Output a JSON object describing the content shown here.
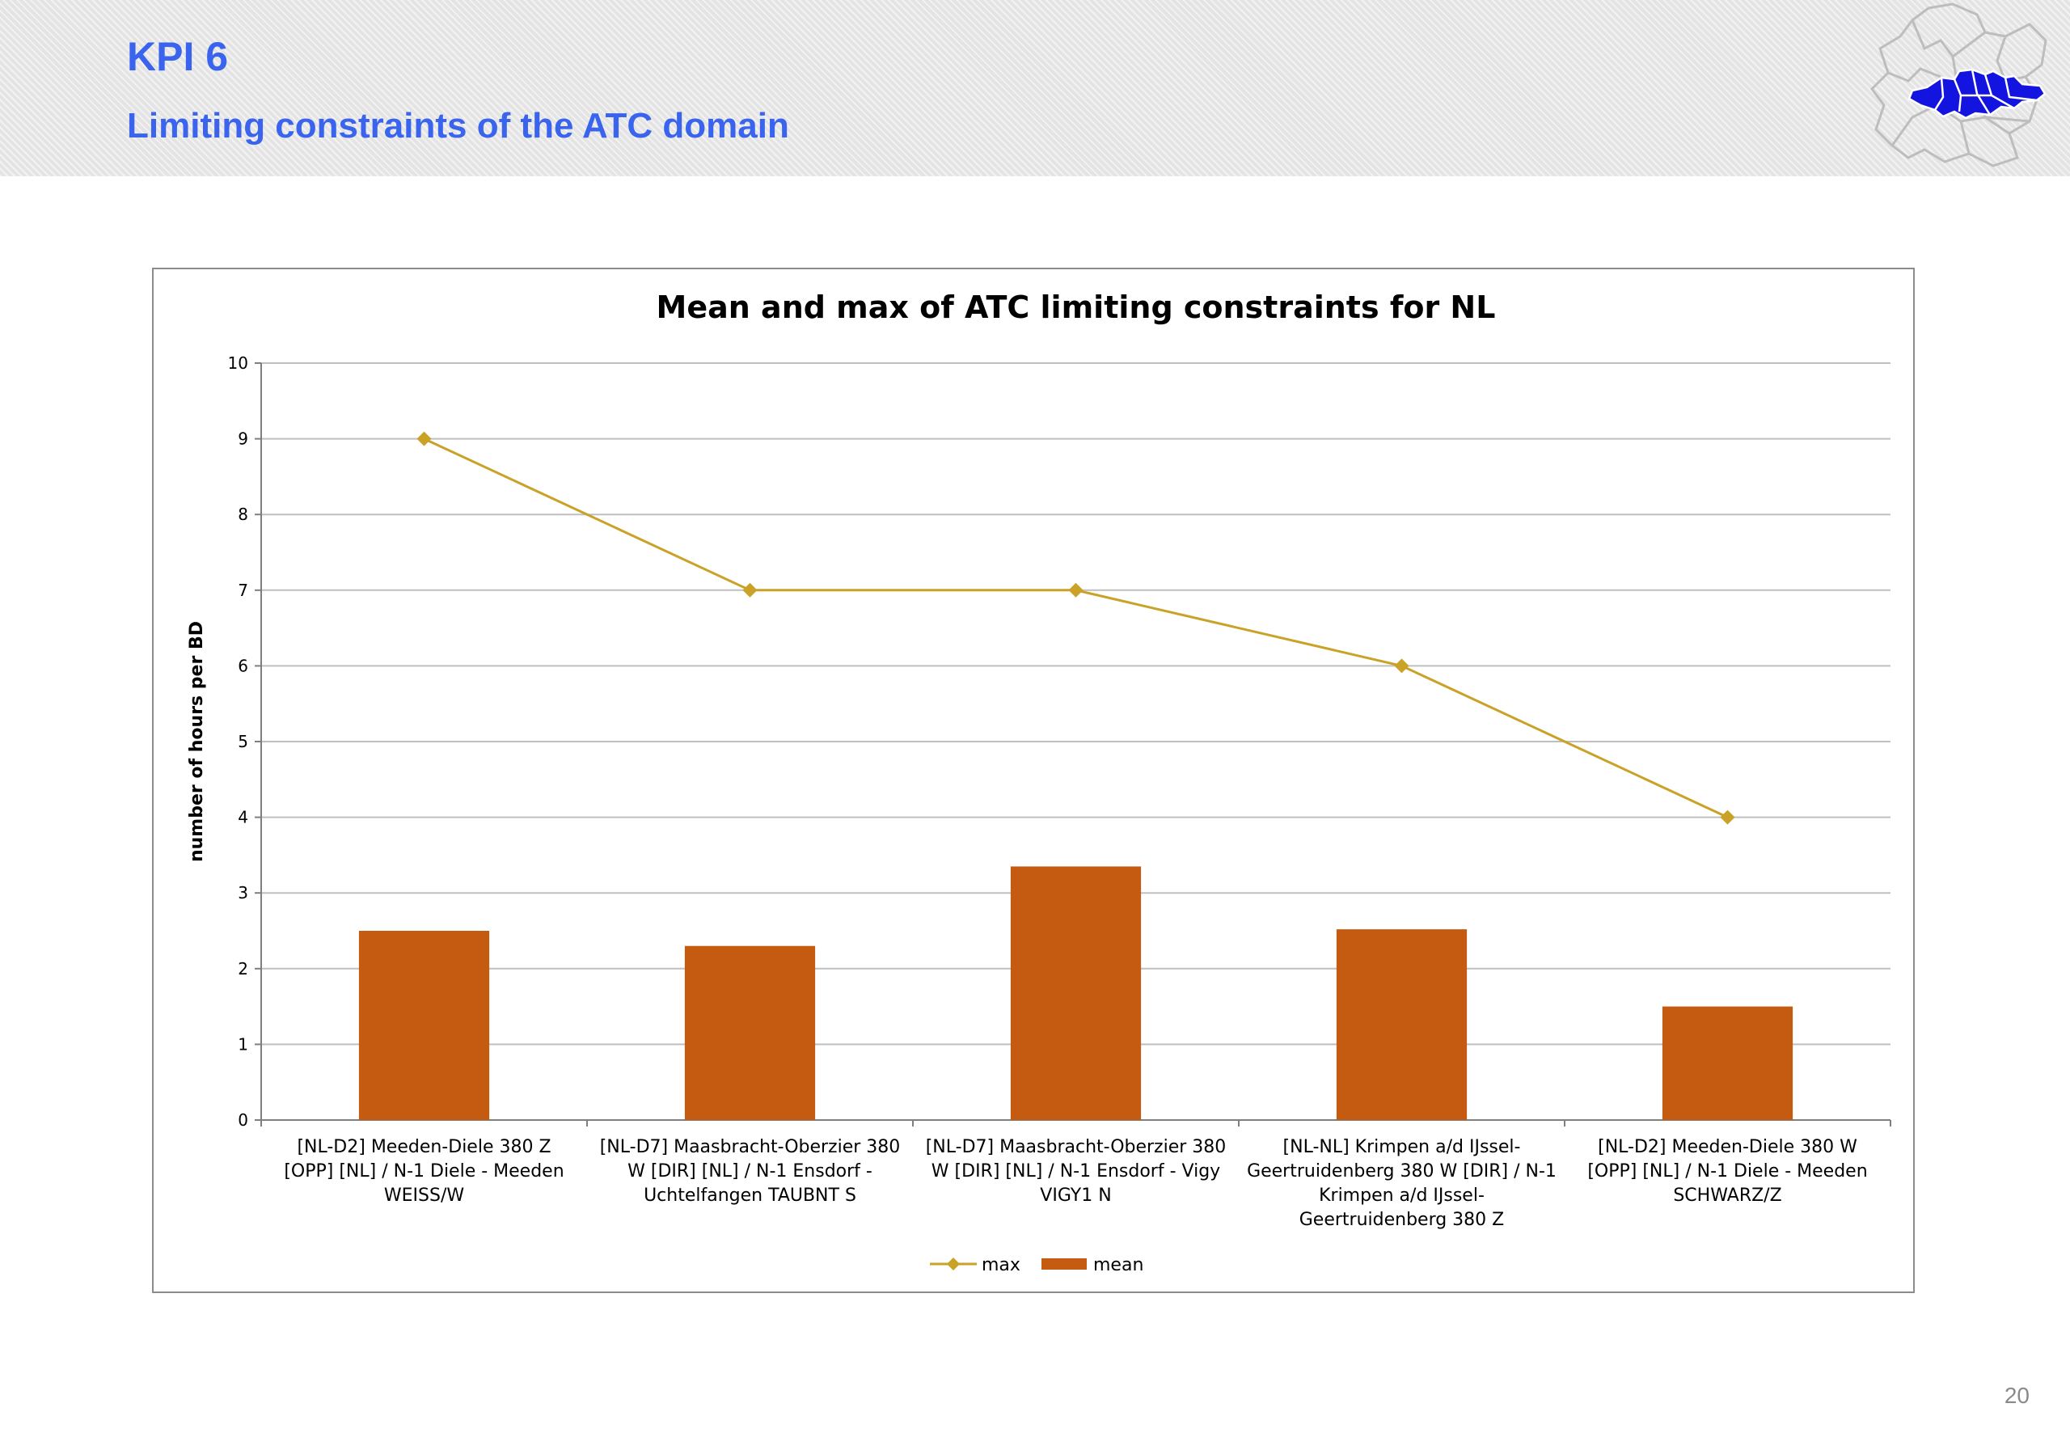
{
  "header": {
    "title": "KPI 6",
    "subtitle": "Limiting constraints of the ATC domain"
  },
  "page_number": "20",
  "colors": {
    "title_blue": "#3a64ee",
    "mean_bar": "#c55a11",
    "max_line": "#c9a227",
    "logo_blue": "#1414e0"
  },
  "icons": [
    "europe-grid-map-logo"
  ],
  "chart_data": {
    "type": "bar",
    "title": "Mean and max of ATC limiting constraints for NL",
    "xlabel": "",
    "ylabel": "number of hours per BD",
    "ylim": [
      0,
      10
    ],
    "yticks": [
      0,
      1,
      2,
      3,
      4,
      5,
      6,
      7,
      8,
      9,
      10
    ],
    "grid": true,
    "legend_position": "bottom",
    "categories": [
      [
        "[NL-D2] Meeden-Diele  380 Z",
        "[OPP] [NL] / N-1 Diele - Meeden",
        "WEISS/W"
      ],
      [
        "[NL-D7] Maasbracht-Oberzier 380",
        "W [DIR] [NL] / N-1 Ensdorf -",
        "Uchtelfangen TAUBNT S"
      ],
      [
        "[NL-D7] Maasbracht-Oberzier 380",
        "W [DIR] [NL] / N-1 Ensdorf - Vigy",
        "VIGY1 N"
      ],
      [
        "[NL-NL] Krimpen a/d IJssel-",
        "Geertruidenberg 380 W [DIR] / N-1",
        "Krimpen a/d IJssel-",
        "Geertruidenberg 380 Z"
      ],
      [
        "[NL-D2] Meeden-Diele 380 W",
        "[OPP] [NL] / N-1 Diele - Meeden",
        "SCHWARZ/Z"
      ]
    ],
    "series": [
      {
        "name": "max",
        "type": "line",
        "marker": "diamond",
        "color": "#c9a227",
        "values": [
          9,
          7,
          7,
          6,
          4
        ]
      },
      {
        "name": "mean",
        "type": "bar",
        "color": "#c55a11",
        "values": [
          2.5,
          2.3,
          3.35,
          2.52,
          1.5
        ]
      }
    ]
  }
}
